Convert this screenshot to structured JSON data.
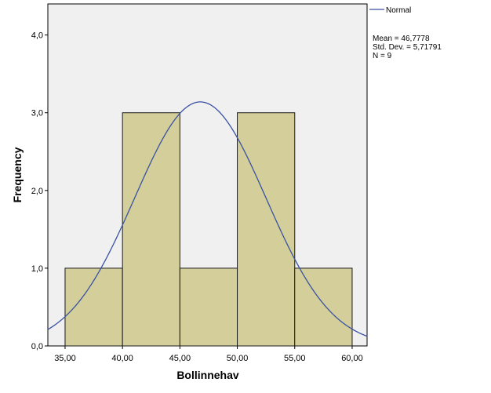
{
  "chart_data": {
    "type": "bar",
    "histogram": true,
    "bins": [
      {
        "from": 35,
        "to": 40,
        "count": 1
      },
      {
        "from": 40,
        "to": 45,
        "count": 3
      },
      {
        "from": 45,
        "to": 50,
        "count": 1
      },
      {
        "from": 50,
        "to": 55,
        "count": 3
      },
      {
        "from": 55,
        "to": 60,
        "count": 1
      }
    ],
    "xlabel": "Bollinnehav",
    "ylabel": "Frequency",
    "xlim": [
      33.5,
      61.3
    ],
    "ylim": [
      0,
      4.4
    ],
    "x_ticks": [
      "35,00",
      "40,00",
      "45,00",
      "50,00",
      "55,00",
      "60,00"
    ],
    "x_tick_values": [
      35,
      40,
      45,
      50,
      55,
      60
    ],
    "y_ticks": [
      "0,0",
      "1,0",
      "2,0",
      "3,0",
      "4,0"
    ],
    "y_tick_values": [
      0,
      1,
      2,
      3,
      4
    ],
    "normal_curve": {
      "mean": 46.7778,
      "sd": 5.71791,
      "n": 9,
      "bin_width": 5
    },
    "legend": {
      "placement": "right-top",
      "entry": "Normal",
      "stats": [
        "Mean = 46,7778",
        "Std. Dev. = 5,71791",
        "N = 9"
      ]
    },
    "colors": {
      "plot_bg": "#f0f0f0",
      "bar_fill": "#d3ce9a",
      "bar_stroke": "#1a1a1a",
      "curve": "#3a52a3"
    }
  }
}
